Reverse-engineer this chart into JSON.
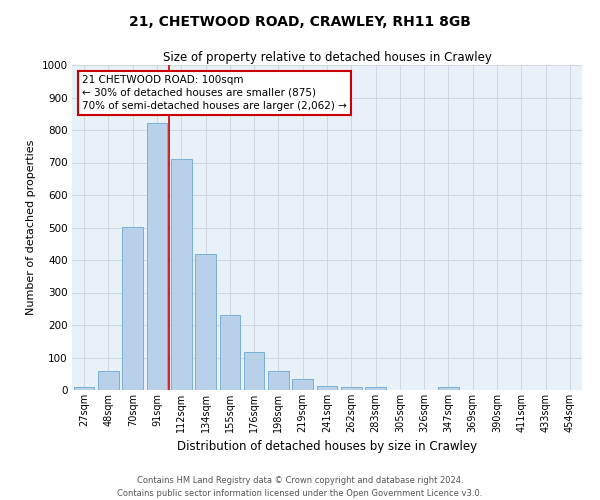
{
  "title": "21, CHETWOOD ROAD, CRAWLEY, RH11 8GB",
  "subtitle": "Size of property relative to detached houses in Crawley",
  "xlabel": "Distribution of detached houses by size in Crawley",
  "ylabel": "Number of detached properties",
  "bin_labels": [
    "27sqm",
    "48sqm",
    "70sqm",
    "91sqm",
    "112sqm",
    "134sqm",
    "155sqm",
    "176sqm",
    "198sqm",
    "219sqm",
    "241sqm",
    "262sqm",
    "283sqm",
    "305sqm",
    "326sqm",
    "347sqm",
    "369sqm",
    "390sqm",
    "411sqm",
    "433sqm",
    "454sqm"
  ],
  "bar_heights": [
    8,
    60,
    503,
    822,
    710,
    418,
    230,
    118,
    58,
    35,
    12,
    8,
    10,
    0,
    0,
    10,
    0,
    0,
    0,
    0,
    0
  ],
  "bar_color": "#b8d0e8",
  "bar_edge_color": "#7aafd4",
  "vline_color": "#cc0000",
  "annotation_text": "21 CHETWOOD ROAD: 100sqm\n← 30% of detached houses are smaller (875)\n70% of semi-detached houses are larger (2,062) →",
  "annotation_box_color": "#ffffff",
  "annotation_box_edge": "#cc0000",
  "ylim": [
    0,
    1000
  ],
  "yticks": [
    0,
    100,
    200,
    300,
    400,
    500,
    600,
    700,
    800,
    900,
    1000
  ],
  "grid_color": "#c8d4e0",
  "bg_color": "#e8f0f8",
  "footer1": "Contains HM Land Registry data © Crown copyright and database right 2024.",
  "footer2": "Contains public sector information licensed under the Open Government Licence v3.0."
}
